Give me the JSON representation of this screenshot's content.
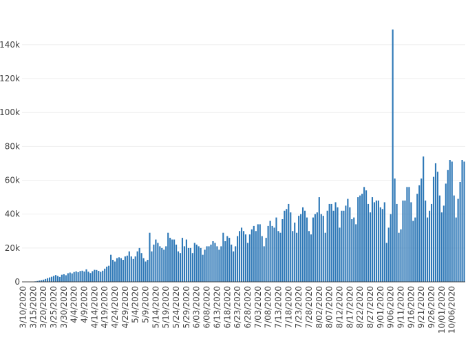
{
  "chart_data": {
    "type": "bar",
    "title": "",
    "xlabel": "",
    "ylabel": "",
    "bar_color": "#2e78b7",
    "grid": true,
    "ylim": [
      0,
      155000
    ],
    "y_ticks": [
      0,
      20000,
      40000,
      60000,
      80000,
      100000,
      120000,
      140000
    ],
    "y_tick_labels": [
      "0",
      "20k",
      "40k",
      "60k",
      "80k",
      "100k",
      "120k",
      "140k"
    ],
    "x_tick_labels": [
      "3/10/2020",
      "3/15/2020",
      "3/20/2020",
      "3/25/2020",
      "3/30/2020",
      "4/4/2020",
      "4/9/2020",
      "4/14/2020",
      "4/19/2020",
      "4/24/2020",
      "4/29/2020",
      "5/4/2020",
      "5/9/2020",
      "5/14/2020",
      "5/19/2020",
      "5/24/2020",
      "5/29/2020",
      "6/03/2020",
      "6/08/2020",
      "6/13/2020",
      "6/18/2020",
      "6/23/2020",
      "6/28/2020",
      "7/03/2020",
      "7/08/2020",
      "7/13/2020",
      "7/18/2020",
      "7/23/2020",
      "7/28/2020",
      "8/02/2020",
      "8/07/2020",
      "8/12/2020",
      "8/17/2020",
      "8/22/2020",
      "8/27/2020",
      "9/01/2020",
      "9/06/2020",
      "9/11/2020",
      "9/16/2020",
      "9/21/2020",
      "9/26/2020",
      "10/01/2020",
      "10/06/2020"
    ],
    "values": [
      0,
      0,
      0,
      0,
      0,
      200,
      300,
      500,
      800,
      1000,
      1300,
      1700,
      2200,
      2600,
      3000,
      3500,
      4000,
      3500,
      2900,
      4200,
      4500,
      3900,
      5100,
      5500,
      5000,
      5800,
      6200,
      5700,
      6400,
      6600,
      6100,
      7400,
      6000,
      5200,
      6300,
      7100,
      7000,
      6500,
      5900,
      6600,
      7800,
      9000,
      9500,
      16000,
      13000,
      12000,
      14000,
      14500,
      14000,
      13000,
      15000,
      15500,
      18000,
      15000,
      13500,
      15000,
      18000,
      20000,
      17000,
      14000,
      12000,
      13000,
      29000,
      18000,
      22000,
      25000,
      23000,
      21000,
      20000,
      19000,
      21000,
      29000,
      26000,
      25000,
      25000,
      22000,
      18000,
      17000,
      26000,
      21000,
      25000,
      20000,
      20000,
      17000,
      23000,
      22000,
      21000,
      20000,
      16000,
      19000,
      21000,
      21000,
      22000,
      24000,
      23000,
      21000,
      19000,
      21000,
      29000,
      24000,
      27000,
      26000,
      22000,
      18000,
      21000,
      27000,
      30000,
      32000,
      30000,
      28000,
      23000,
      28000,
      31000,
      33000,
      30000,
      34000,
      34000,
      27000,
      21000,
      26000,
      33000,
      36000,
      33000,
      32000,
      38000,
      30000,
      29000,
      37000,
      42000,
      43000,
      46000,
      41000,
      30000,
      35000,
      29000,
      39000,
      40000,
      44000,
      42000,
      38000,
      30000,
      28000,
      38000,
      40000,
      41000,
      50000,
      40000,
      39000,
      29000,
      42000,
      46000,
      46000,
      42000,
      47000,
      44000,
      32000,
      42000,
      42000,
      45000,
      49000,
      44000,
      37000,
      38000,
      34000,
      50000,
      51000,
      52000,
      56000,
      54000,
      46000,
      41000,
      50000,
      47000,
      48000,
      48000,
      44000,
      43000,
      47000,
      23000,
      32000,
      40000,
      149000,
      61000,
      46000,
      29000,
      31000,
      48000,
      48000,
      56000,
      56000,
      47000,
      36000,
      38000,
      52000,
      57000,
      61000,
      74000,
      48000,
      38000,
      42000,
      46000,
      62000,
      70000,
      65000,
      51000,
      41000,
      45000,
      58000,
      66000,
      72000,
      71000,
      51000,
      38000,
      49000,
      59000,
      72000,
      71000
    ]
  }
}
